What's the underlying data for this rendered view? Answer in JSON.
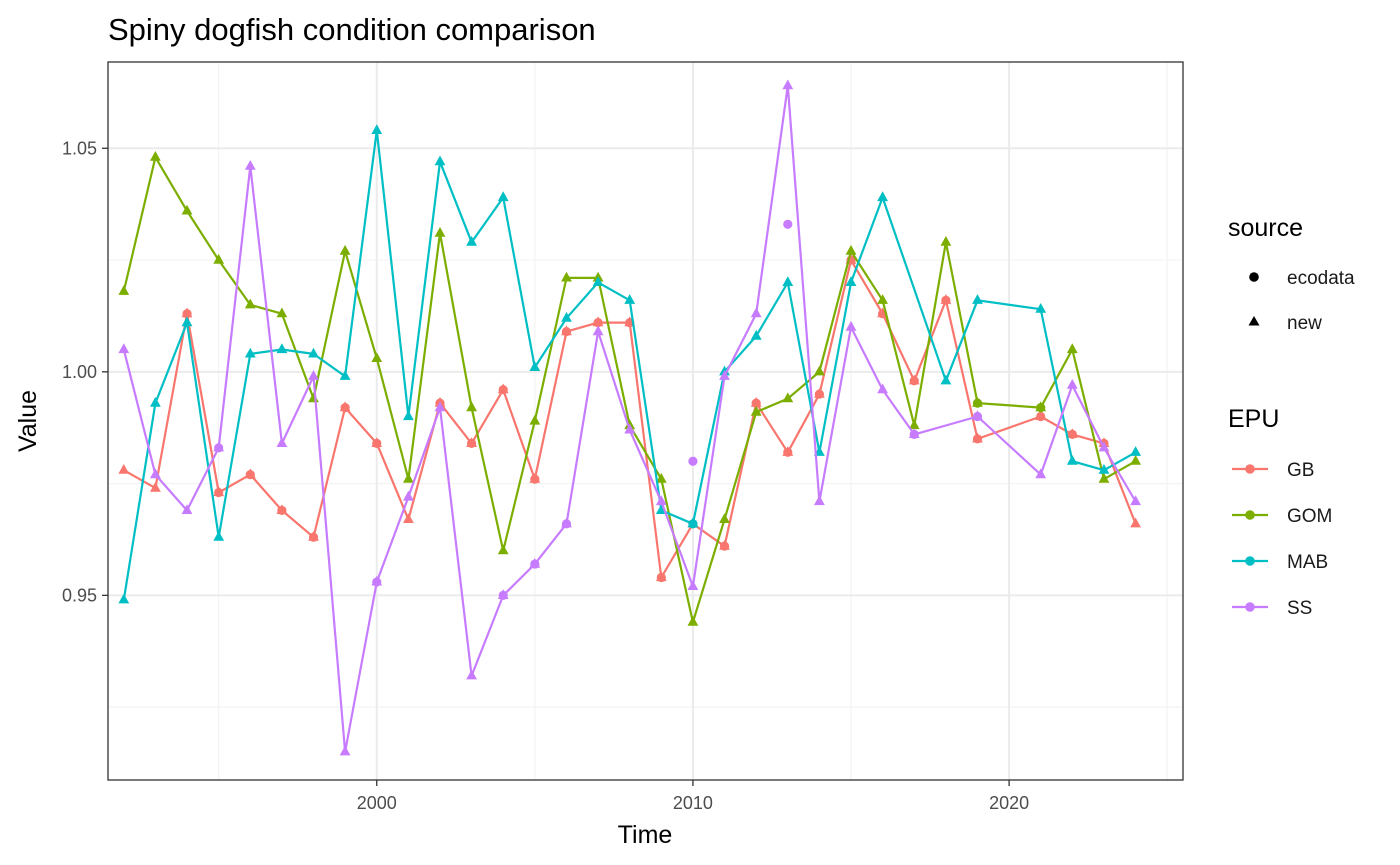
{
  "chart_data": {
    "type": "line",
    "title": "Spiny dogfish condition comparison",
    "xlabel": "Time",
    "ylabel": "Value",
    "xlim": [
      1991.5,
      2025.5
    ],
    "ylim": [
      0.9087,
      1.0693
    ],
    "x_ticks": [
      2000,
      2010,
      2020
    ],
    "x_tick_labels": [
      "2000",
      "2010",
      "2020"
    ],
    "y_ticks": [
      0.95,
      1.0,
      1.05
    ],
    "y_tick_labels": [
      "0.95",
      "1.00",
      "1.05"
    ],
    "grid": true,
    "legend": {
      "placement": "right",
      "source_title": "source",
      "source_items": [
        {
          "label": "ecodata",
          "shape": "circle"
        },
        {
          "label": "new",
          "shape": "triangle"
        }
      ],
      "epu_title": "EPU",
      "epu_items": [
        "GB",
        "GOM",
        "MAB",
        "SS"
      ]
    },
    "colors": {
      "GB": "#F8766D",
      "GOM": "#7CAE00",
      "MAB": "#00BFC4",
      "SS": "#C77CFF"
    },
    "series": [
      {
        "name": "GB",
        "x": [
          1992,
          1993,
          1994,
          1995,
          1996,
          1997,
          1998,
          1999,
          2000,
          2001,
          2002,
          2003,
          2004,
          2005,
          2006,
          2007,
          2008,
          2009,
          2010,
          2011,
          2012,
          2013,
          2014,
          2015,
          2016,
          2017,
          2018,
          2019,
          2021,
          2022,
          2023,
          2024
        ],
        "y": [
          0.978,
          0.974,
          1.013,
          0.973,
          0.977,
          0.969,
          0.963,
          0.992,
          0.984,
          0.967,
          0.993,
          0.984,
          0.996,
          0.976,
          1.009,
          1.011,
          1.011,
          0.954,
          0.966,
          0.961,
          0.993,
          0.982,
          0.995,
          1.025,
          1.013,
          0.998,
          1.016,
          0.985,
          0.99,
          0.986,
          0.984,
          0.966
        ]
      },
      {
        "name": "GOM",
        "x": [
          1992,
          1993,
          1994,
          1995,
          1996,
          1997,
          1998,
          1999,
          2000,
          2001,
          2002,
          2003,
          2004,
          2005,
          2006,
          2007,
          2008,
          2009,
          2010,
          2011,
          2012,
          2013,
          2014,
          2015,
          2016,
          2017,
          2018,
          2019,
          2021,
          2022,
          2023,
          2024
        ],
        "y": [
          1.018,
          1.048,
          1.036,
          1.025,
          1.015,
          1.013,
          0.994,
          1.027,
          1.003,
          0.976,
          1.031,
          0.992,
          0.96,
          0.989,
          1.021,
          1.021,
          0.988,
          0.976,
          0.944,
          0.967,
          0.991,
          0.994,
          1.0,
          1.027,
          1.016,
          0.988,
          1.029,
          0.993,
          0.992,
          1.005,
          0.976,
          0.98
        ]
      },
      {
        "name": "MAB",
        "x": [
          1992,
          1993,
          1994,
          1995,
          1996,
          1997,
          1998,
          1999,
          2000,
          2001,
          2002,
          2003,
          2004,
          2005,
          2006,
          2007,
          2008,
          2009,
          2010,
          2011,
          2012,
          2013,
          2014,
          2015,
          2016,
          2018,
          2019,
          2021,
          2022,
          2023,
          2024
        ],
        "y": [
          0.949,
          0.993,
          1.011,
          0.963,
          1.004,
          1.005,
          1.004,
          0.999,
          1.054,
          0.99,
          1.047,
          1.029,
          1.039,
          1.001,
          1.012,
          1.02,
          1.016,
          0.969,
          0.966,
          1.0,
          1.008,
          1.02,
          0.982,
          1.02,
          1.039,
          0.998,
          1.016,
          1.014,
          0.98,
          0.978,
          0.982
        ]
      },
      {
        "name": "SS",
        "x": [
          1992,
          1993,
          1994,
          1995,
          1996,
          1997,
          1998,
          1999,
          2000,
          2001,
          2002,
          2003,
          2004,
          2005,
          2006,
          2007,
          2008,
          2009,
          2010,
          2011,
          2012,
          2013,
          2014,
          2015,
          2016,
          2017,
          2019,
          2021,
          2022,
          2023,
          2024
        ],
        "y": [
          1.005,
          0.977,
          0.969,
          0.983,
          1.046,
          0.984,
          0.999,
          0.915,
          0.953,
          0.972,
          0.992,
          0.932,
          0.95,
          0.957,
          0.966,
          1.009,
          0.987,
          0.971,
          0.952,
          0.999,
          1.013,
          1.064,
          0.971,
          1.01,
          0.996,
          0.986,
          0.99,
          0.977,
          0.997,
          0.983,
          0.971
        ]
      }
    ],
    "ecodata_series": [
      {
        "name": "GB",
        "x": [
          1994,
          1995,
          1996,
          1997,
          1998,
          1999,
          2000,
          2002,
          2003,
          2004,
          2005,
          2006,
          2007,
          2008,
          2009,
          2010,
          2011,
          2012,
          2013,
          2014,
          2015,
          2016,
          2017,
          2018,
          2019,
          2021,
          2022,
          2023
        ],
        "y": [
          1.013,
          0.973,
          0.977,
          0.969,
          0.963,
          0.992,
          0.984,
          0.993,
          0.984,
          0.996,
          0.976,
          1.009,
          1.011,
          1.011,
          0.954,
          0.966,
          0.961,
          0.993,
          0.982,
          0.995,
          1.025,
          1.013,
          0.998,
          1.016,
          0.985,
          0.99,
          0.986,
          0.984
        ]
      },
      {
        "name": "GOM",
        "x": [
          2019,
          2021
        ],
        "y": [
          0.993,
          0.992
        ]
      },
      {
        "name": "MAB",
        "x": [
          2010
        ],
        "y": [
          0.966
        ]
      },
      {
        "name": "SS",
        "x": [
          1995,
          2000,
          2004,
          2005,
          2006,
          2010,
          2013,
          2017,
          2019
        ],
        "y": [
          0.983,
          0.953,
          0.95,
          0.957,
          0.966,
          0.98,
          1.033,
          0.986,
          0.99
        ]
      }
    ]
  }
}
